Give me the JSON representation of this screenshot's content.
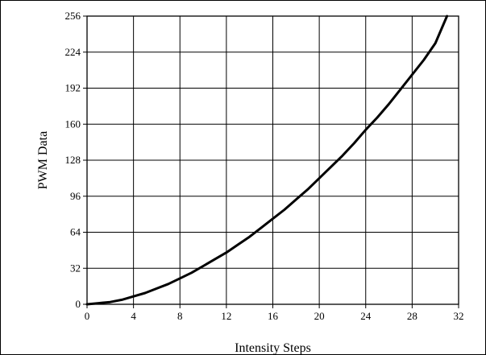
{
  "chart_data": {
    "type": "line",
    "xlabel": "Intensity Steps",
    "ylabel": "PWM Data",
    "xlim": [
      0,
      32
    ],
    "ylim": [
      0,
      256
    ],
    "x_ticks": [
      0,
      4,
      8,
      12,
      16,
      20,
      24,
      28,
      32
    ],
    "x_tick_labels": [
      "0",
      "4",
      "8",
      "12",
      "16",
      "20",
      "24",
      "28",
      "32"
    ],
    "y_ticks": [
      0,
      32,
      64,
      96,
      128,
      160,
      192,
      224,
      256
    ],
    "y_tick_labels": [
      "0",
      "32",
      "64",
      "96",
      "128",
      "160",
      "192",
      "224",
      "256"
    ],
    "grid": true,
    "series": [
      {
        "color": "#000000",
        "x": [
          0,
          1,
          2,
          3,
          4,
          5,
          6,
          7,
          8,
          9,
          10,
          11,
          12,
          13,
          14,
          15,
          16,
          17,
          18,
          19,
          20,
          21,
          22,
          23,
          24,
          25,
          26,
          27,
          28,
          29,
          30,
          31
        ],
        "y": [
          0,
          1,
          2,
          4,
          7,
          10,
          14,
          18,
          23,
          28,
          34,
          40,
          46,
          53,
          60,
          68,
          76,
          84,
          93,
          102,
          112,
          122,
          132,
          143,
          155,
          166,
          178,
          191,
          204,
          217,
          232,
          256
        ]
      }
    ]
  }
}
